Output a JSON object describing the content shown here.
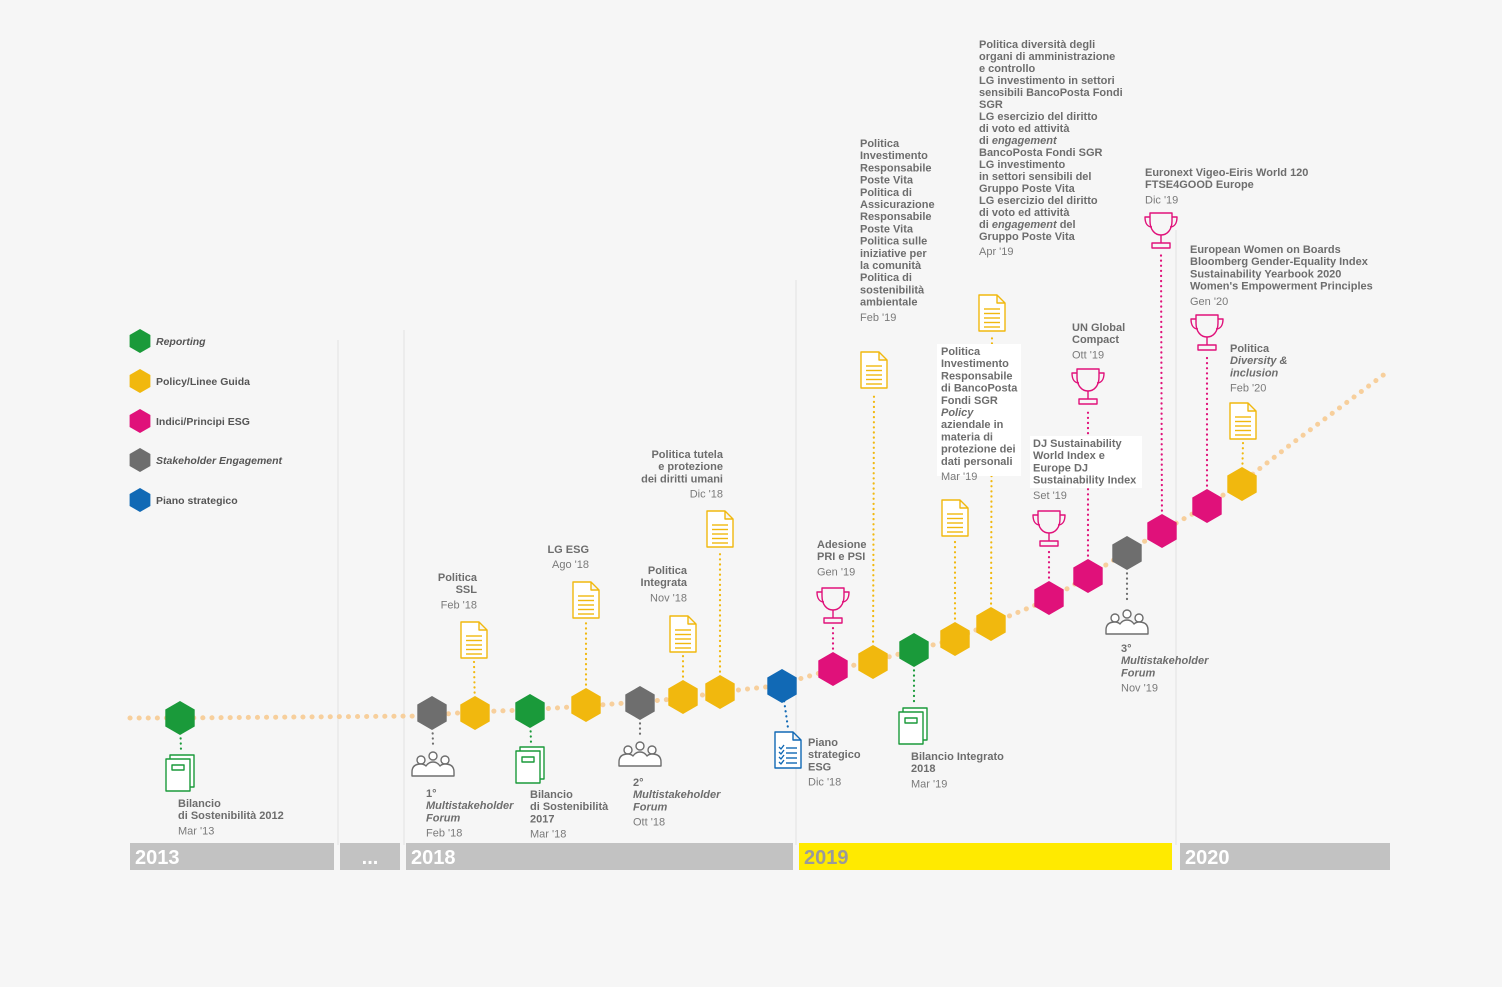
{
  "colors": {
    "reporting": "#1a9a3a",
    "policy": "#f1b80e",
    "esg": "#e0117a",
    "stakeholder": "#6e6e6e",
    "strategic": "#1169b5",
    "trail": "#f7cf9c",
    "band": "#c2c2c2",
    "band_2019": "#ffea00"
  },
  "legend": [
    {
      "label": "Reporting",
      "color_key": "reporting",
      "italic": true
    },
    {
      "label": "Policy/Linee Guida",
      "color_key": "policy",
      "italic": false
    },
    {
      "label": "Indici/Principi ESG",
      "color_key": "esg",
      "italic": false
    },
    {
      "label": "Stakeholder Engagement",
      "color_key": "stakeholder",
      "italic": true
    },
    {
      "label": "Piano strategico",
      "color_key": "strategic",
      "italic": false
    }
  ],
  "years": [
    "2013",
    "...",
    "2018",
    "2019",
    "2020"
  ],
  "events": [
    {
      "id": "bilancio-2012",
      "category": "reporting",
      "icon": "book-icon",
      "label_lines": [
        "Bilancio",
        "di Sostenibilità 2012"
      ],
      "date": "Mar '13"
    },
    {
      "id": "multistakeholder-1",
      "category": "stakeholder",
      "icon": "people-icon",
      "label_lines": [
        "1°",
        "Multistakeholder",
        "Forum"
      ],
      "date": "Feb '18"
    },
    {
      "id": "politica-ssl",
      "category": "policy",
      "icon": "document-icon",
      "label_lines": [
        "Politica",
        "SSL"
      ],
      "date": "Feb '18"
    },
    {
      "id": "bilancio-2017",
      "category": "reporting",
      "icon": "book-icon",
      "label_lines": [
        "Bilancio",
        "di Sostenibilità",
        "2017"
      ],
      "date": "Mar '18"
    },
    {
      "id": "lg-esg",
      "category": "policy",
      "icon": "document-icon",
      "label_lines": [
        "LG ESG"
      ],
      "date": "Ago '18"
    },
    {
      "id": "multistakeholder-2",
      "category": "stakeholder",
      "icon": "people-icon",
      "label_lines": [
        "2°",
        "Multistakeholder",
        "Forum"
      ],
      "date": "Ott '18"
    },
    {
      "id": "politica-integrata",
      "category": "policy",
      "icon": "document-icon",
      "label_lines": [
        "Politica",
        "Integrata"
      ],
      "date": "Nov '18"
    },
    {
      "id": "politica-diritti-umani",
      "category": "policy",
      "icon": "document-icon",
      "label_lines": [
        "Politica tutela",
        "e protezione",
        "dei diritti umani"
      ],
      "date": "Dic '18"
    },
    {
      "id": "piano-strategico",
      "category": "strategic",
      "icon": "checklist-icon",
      "label_lines": [
        "Piano",
        "strategico",
        "ESG"
      ],
      "date": "Dic '18"
    },
    {
      "id": "pri-psi",
      "category": "esg",
      "icon": "trophy-icon",
      "label_lines": [
        "Adesione",
        "PRI e PSI"
      ],
      "date": "Gen '19"
    },
    {
      "id": "politiche-feb19",
      "category": "policy",
      "icon": "document-icon",
      "label_lines": [
        "Politica",
        "Investimento",
        "Responsabile",
        "Poste Vita",
        "Politica di",
        "Assicurazione",
        "Responsabile",
        "Poste Vita",
        "Politica sulle",
        "iniziative per",
        "la comunità",
        "Politica di",
        "sostenibilità",
        "ambientale"
      ],
      "date": "Feb '19"
    },
    {
      "id": "bilancio-2018",
      "category": "reporting",
      "icon": "book-icon",
      "label_lines": [
        "Bilancio Integrato",
        "2018"
      ],
      "date": "Mar '19"
    },
    {
      "id": "politiche-mar19",
      "category": "policy",
      "icon": "document-icon",
      "label_lines": [
        "Politica",
        "Investimento",
        "Responsabile",
        "di BancoPosta",
        "Fondi SGR",
        "Policy",
        "aziendale in",
        "materia di",
        "protezione dei",
        "dati personali"
      ],
      "date": "Mar '19"
    },
    {
      "id": "politiche-apr19",
      "category": "policy",
      "icon": "document-icon",
      "label_lines": [
        "Politica diversità degli",
        "organi di amministrazione",
        "e controllo",
        "LG investimento in settori",
        "sensibili BancoPosta Fondi",
        "SGR",
        "LG esercizio del diritto",
        "di voto ed attività",
        "di engagement",
        "BancoPosta Fondi SGR",
        "LG investimento",
        "in settori sensibili del",
        "Gruppo Poste Vita",
        "LG esercizio del diritto",
        "di voto ed attività",
        "di engagement del",
        "Gruppo Poste Vita"
      ],
      "date": "Apr '19"
    },
    {
      "id": "dj-sustainability",
      "category": "esg",
      "icon": "trophy-icon",
      "label_lines": [
        "DJ Sustainability",
        "World Index e",
        "Europe DJ",
        "Sustainability Index"
      ],
      "date": "Set '19"
    },
    {
      "id": "un-global-compact",
      "category": "esg",
      "icon": "trophy-icon",
      "label_lines": [
        "UN Global",
        "Compact"
      ],
      "date": "Ott '19"
    },
    {
      "id": "multistakeholder-3",
      "category": "stakeholder",
      "icon": "people-icon",
      "label_lines": [
        "3°",
        "Multistakeholder",
        "Forum"
      ],
      "date": "Nov '19"
    },
    {
      "id": "euronext-ftse",
      "category": "esg",
      "icon": "trophy-icon",
      "label_lines": [
        "Euronext Vigeo-Eiris World 120",
        "FTSE4GOOD Europe"
      ],
      "date": "Dic '19"
    },
    {
      "id": "indici-gen20",
      "category": "esg",
      "icon": "trophy-icon",
      "label_lines": [
        "European Women on Boards",
        "Bloomberg Gender-Equality Index",
        "Sustainability Yearbook 2020",
        "Women's Empowerment Principles"
      ],
      "date": "Gen '20"
    },
    {
      "id": "politica-diversity",
      "category": "policy",
      "icon": "document-icon",
      "label_lines": [
        "Politica",
        "Diversity &",
        "inclusion"
      ],
      "date": "Feb '20"
    }
  ]
}
